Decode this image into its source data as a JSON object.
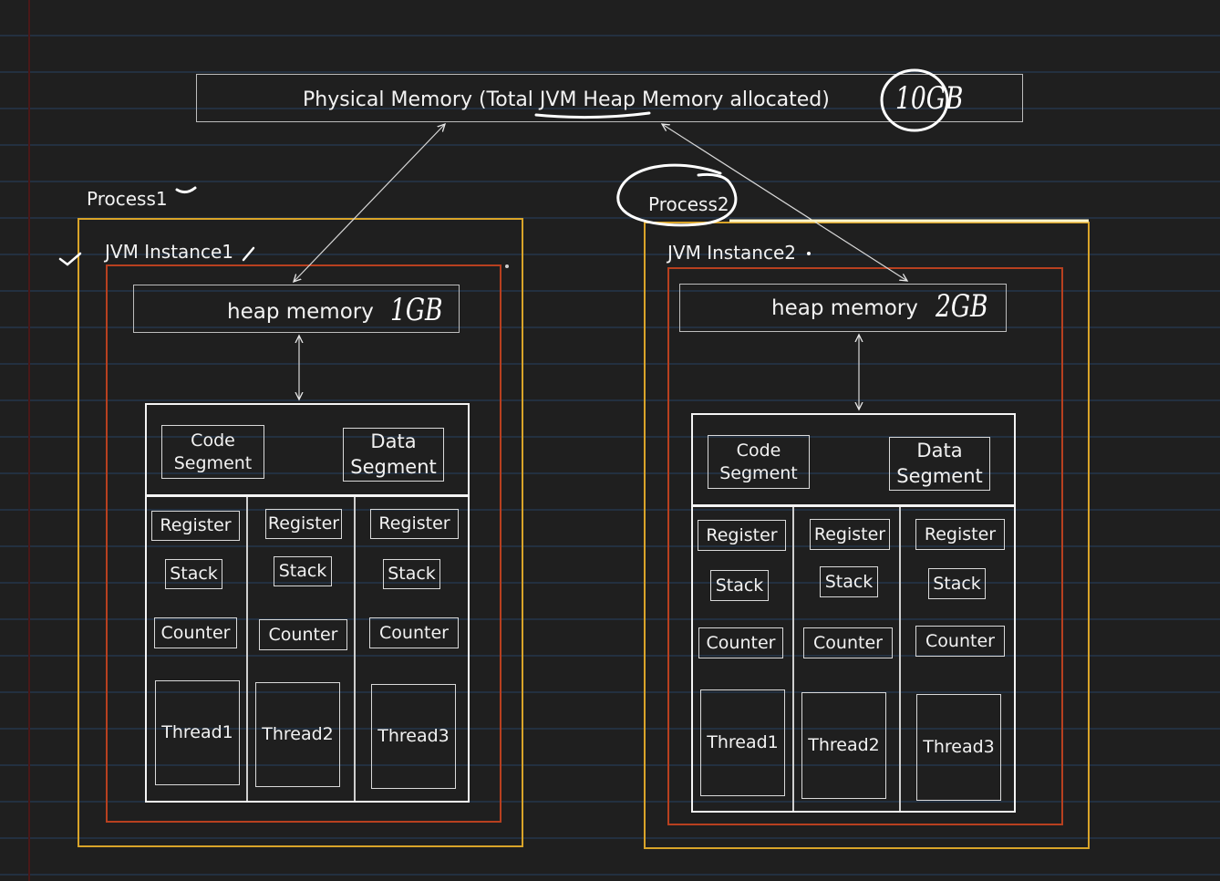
{
  "physical_memory": {
    "label": "Physical Memory (Total JVM Heap Memory allocated)",
    "annotation": "10GB"
  },
  "processes": [
    {
      "label": "Process1",
      "jvm_label": "JVM Instance1",
      "heap_label": "heap memory",
      "heap_annotation": "1GB",
      "code_segment": "Code\nSegment",
      "data_segment": "Data\nSegment",
      "threads": [
        {
          "register": "Register",
          "stack": "Stack",
          "counter": "Counter",
          "name": "Thread1"
        },
        {
          "register": "Register",
          "stack": "Stack",
          "counter": "Counter",
          "name": "Thread2"
        },
        {
          "register": "Register",
          "stack": "Stack",
          "counter": "Counter",
          "name": "Thread3"
        }
      ]
    },
    {
      "label": "Process2",
      "jvm_label": "JVM Instance2",
      "heap_label": "heap memory",
      "heap_annotation": "2GB",
      "code_segment": "Code\nSegment",
      "data_segment": "Data\nSegment",
      "threads": [
        {
          "register": "Register",
          "stack": "Stack",
          "counter": "Counter",
          "name": "Thread1"
        },
        {
          "register": "Register",
          "stack": "Stack",
          "counter": "Counter",
          "name": "Thread2"
        },
        {
          "register": "Register",
          "stack": "Stack",
          "counter": "Counter",
          "name": "Thread3"
        }
      ]
    }
  ],
  "colors": {
    "background": "#1f1f1f",
    "ruled_line": "#233040",
    "process_border": "#d9a429",
    "jvm_border": "#b8401f",
    "box_border": "#f4f4f4"
  }
}
